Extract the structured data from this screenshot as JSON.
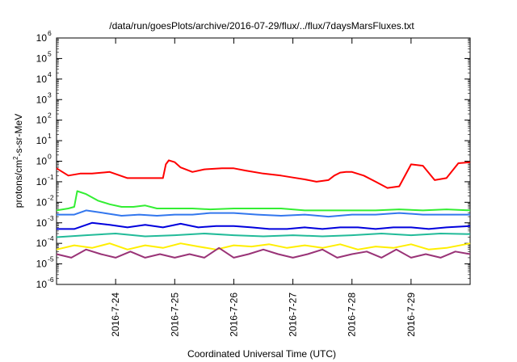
{
  "chart_data": {
    "type": "line",
    "title": "/data/run/goesPlots/archive/2016-07-29/flux/../flux/7daysMarsFluxes.txt",
    "xlabel": "Coordinated Universal Time (UTC)",
    "ylabel_main": "protons/cm",
    "ylabel_sup": "2",
    "ylabel_rest": "-s-sr-MeV",
    "yscale": "log",
    "ylim_exp": [
      -6,
      6
    ],
    "y_ticks_base": "10",
    "y_ticks_exp": [
      "-6",
      "-5",
      "-4",
      "-3",
      "-2",
      "-1",
      "0",
      "1",
      "2",
      "3",
      "4",
      "5",
      "6"
    ],
    "x_range_days": [
      0,
      7
    ],
    "x_ticks": [
      "2016-7-24",
      "2016-7-25",
      "2016-7-26",
      "2016-7-27",
      "2016-7-28",
      "2016-7-29"
    ],
    "x_tick_days": [
      1,
      2,
      3,
      4,
      5,
      6
    ],
    "grid": false,
    "series": [
      {
        "color": "#ff0000",
        "x": [
          0,
          0.2,
          0.4,
          0.6,
          0.9,
          1.2,
          1.5,
          1.8,
          1.85,
          1.9,
          2.0,
          2.1,
          2.3,
          2.5,
          2.8,
          3.0,
          3.2,
          3.5,
          3.8,
          4.0,
          4.2,
          4.4,
          4.6,
          4.7,
          4.8,
          4.9,
          5.0,
          5.2,
          5.4,
          5.6,
          5.8,
          6.0,
          6.2,
          6.4,
          6.6,
          6.8,
          7.0
        ],
        "y": [
          0.45,
          0.2,
          0.25,
          0.25,
          0.3,
          0.15,
          0.15,
          0.15,
          0.7,
          1.1,
          0.9,
          0.5,
          0.3,
          0.4,
          0.45,
          0.45,
          0.35,
          0.25,
          0.2,
          0.16,
          0.13,
          0.1,
          0.12,
          0.2,
          0.28,
          0.3,
          0.3,
          0.2,
          0.1,
          0.05,
          0.06,
          0.7,
          0.6,
          0.12,
          0.15,
          0.8,
          0.9
        ]
      },
      {
        "color": "#33ee33",
        "x": [
          0,
          0.2,
          0.3,
          0.35,
          0.5,
          0.7,
          0.9,
          1.1,
          1.3,
          1.5,
          1.7,
          2.0,
          2.3,
          2.6,
          3.0,
          3.4,
          3.8,
          4.2,
          4.6,
          5.0,
          5.4,
          5.8,
          6.2,
          6.6,
          7.0
        ],
        "y": [
          0.004,
          0.005,
          0.006,
          0.035,
          0.025,
          0.012,
          0.008,
          0.006,
          0.006,
          0.007,
          0.005,
          0.005,
          0.005,
          0.0045,
          0.005,
          0.005,
          0.005,
          0.004,
          0.004,
          0.004,
          0.004,
          0.0045,
          0.004,
          0.0045,
          0.004
        ]
      },
      {
        "color": "#3377ee",
        "x": [
          0,
          0.3,
          0.5,
          0.8,
          1.1,
          1.4,
          1.7,
          2.0,
          2.3,
          2.6,
          3.0,
          3.4,
          3.8,
          4.2,
          4.6,
          5.0,
          5.4,
          5.8,
          6.2,
          6.6,
          7.0
        ],
        "y": [
          0.0025,
          0.0025,
          0.004,
          0.003,
          0.0022,
          0.0025,
          0.0022,
          0.0025,
          0.0025,
          0.003,
          0.003,
          0.0025,
          0.0022,
          0.0025,
          0.002,
          0.0025,
          0.0025,
          0.003,
          0.0025,
          0.0025,
          0.0025
        ]
      },
      {
        "color": "#0000dd",
        "x": [
          0,
          0.3,
          0.6,
          0.9,
          1.2,
          1.5,
          1.8,
          2.1,
          2.4,
          2.7,
          3.0,
          3.3,
          3.6,
          3.9,
          4.2,
          4.5,
          4.8,
          5.1,
          5.4,
          5.7,
          6.0,
          6.3,
          6.6,
          7.0
        ],
        "y": [
          0.0005,
          0.0005,
          0.001,
          0.0008,
          0.0006,
          0.0008,
          0.0006,
          0.0009,
          0.0006,
          0.0007,
          0.0007,
          0.0006,
          0.0005,
          0.0005,
          0.0006,
          0.0005,
          0.0006,
          0.0006,
          0.0005,
          0.0006,
          0.0006,
          0.0005,
          0.0006,
          0.0007
        ]
      },
      {
        "color": "#22bb99",
        "x": [
          0,
          0.5,
          1.0,
          1.5,
          2.0,
          2.5,
          3.0,
          3.5,
          4.0,
          4.5,
          5.0,
          5.5,
          6.0,
          6.5,
          7.0
        ],
        "y": [
          0.0002,
          0.00025,
          0.0003,
          0.00022,
          0.00025,
          0.0003,
          0.00025,
          0.00022,
          0.00025,
          0.00022,
          0.00025,
          0.0003,
          0.00025,
          0.0003,
          0.00028
        ]
      },
      {
        "color": "#ffee00",
        "x": [
          0,
          0.3,
          0.6,
          0.9,
          1.2,
          1.5,
          1.8,
          2.1,
          2.4,
          2.7,
          3.0,
          3.3,
          3.6,
          3.9,
          4.2,
          4.5,
          4.8,
          5.1,
          5.4,
          5.7,
          6.0,
          6.3,
          6.6,
          7.0
        ],
        "y": [
          5e-05,
          8e-05,
          6e-05,
          0.0001,
          5e-05,
          8e-05,
          6e-05,
          0.0001,
          7e-05,
          5e-05,
          8e-05,
          7e-05,
          9e-05,
          6e-05,
          8e-05,
          6e-05,
          9e-05,
          5e-05,
          7e-05,
          6e-05,
          9e-05,
          5e-05,
          6e-05,
          0.0001
        ]
      },
      {
        "color": "#993377",
        "x": [
          0,
          0.25,
          0.5,
          0.75,
          1.0,
          1.25,
          1.5,
          1.75,
          2.0,
          2.25,
          2.5,
          2.75,
          3.0,
          3.25,
          3.5,
          3.75,
          4.0,
          4.25,
          4.5,
          4.75,
          5.0,
          5.25,
          5.5,
          5.75,
          6.0,
          6.25,
          6.5,
          6.75,
          7.0
        ],
        "y": [
          3e-05,
          2e-05,
          5e-05,
          3e-05,
          2e-05,
          4e-05,
          2e-05,
          3e-05,
          2e-05,
          3e-05,
          2e-05,
          6e-05,
          2e-05,
          3e-05,
          5e-05,
          3e-05,
          2e-05,
          3e-05,
          5e-05,
          2e-05,
          3e-05,
          4e-05,
          2e-05,
          5e-05,
          2e-05,
          3e-05,
          2e-05,
          4e-05,
          3e-05
        ]
      }
    ]
  }
}
